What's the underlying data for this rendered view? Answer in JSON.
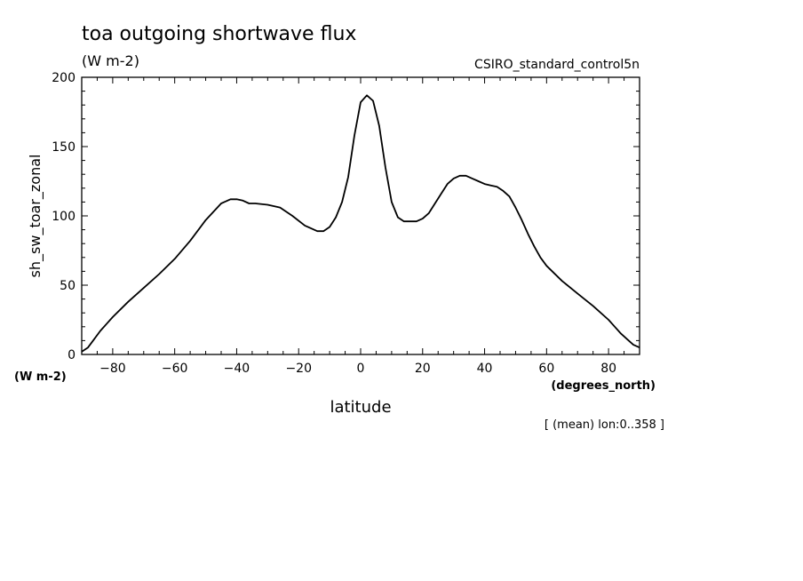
{
  "chart_data": {
    "type": "line",
    "title": "toa outgoing shortwave flux",
    "title_units": "(W m-2)",
    "model_label": "CSIRO_standard_control5n",
    "ylabel": "sh_sw_toar_zonal",
    "y_units": "(W m-2)",
    "xlabel": "latitude",
    "x_units": "(degrees_north)",
    "footnote": "[ (mean) lon:0..358 ]",
    "xlim": [
      -90,
      90
    ],
    "ylim": [
      0,
      200
    ],
    "x_ticks": [
      -80,
      -60,
      -40,
      -20,
      0,
      20,
      40,
      60,
      80
    ],
    "y_ticks": [
      0,
      50,
      100,
      150,
      200
    ],
    "grid": false,
    "series": [
      {
        "x": [
          -90,
          -88,
          -86,
          -84,
          -82,
          -80,
          -75,
          -70,
          -65,
          -60,
          -55,
          -50,
          -45,
          -42,
          -40,
          -38,
          -36,
          -34,
          -30,
          -26,
          -22,
          -18,
          -14,
          -12,
          -10,
          -8,
          -6,
          -4,
          -2,
          0,
          2,
          4,
          6,
          8,
          10,
          12,
          14,
          16,
          18,
          20,
          22,
          24,
          26,
          28,
          30,
          32,
          34,
          36,
          38,
          40,
          42,
          44,
          46,
          48,
          50,
          52,
          54,
          56,
          58,
          60,
          65,
          70,
          75,
          80,
          82,
          84,
          86,
          88,
          90
        ],
        "y": [
          2,
          5,
          11,
          17,
          22,
          27,
          38,
          48,
          58,
          69,
          82,
          97,
          109,
          112,
          112,
          111,
          109,
          109,
          108,
          106,
          100,
          93,
          89,
          89,
          92,
          99,
          110,
          128,
          158,
          182,
          187,
          183,
          165,
          135,
          110,
          99,
          96,
          96,
          96,
          98,
          102,
          109,
          116,
          123,
          127,
          129,
          129,
          127,
          125,
          123,
          122,
          121,
          118,
          114,
          106,
          97,
          87,
          78,
          70,
          64,
          53,
          44,
          35,
          25,
          20,
          15,
          11,
          7,
          5
        ]
      }
    ]
  }
}
